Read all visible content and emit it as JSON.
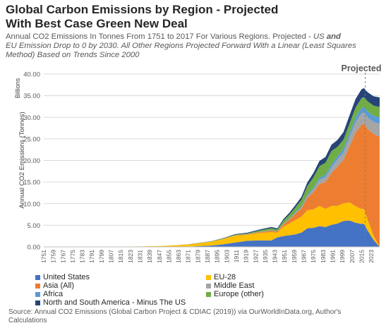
{
  "title_line1": "Global Carbon Emissions by Region - Projected",
  "title_line2": "With Best Case Green New Deal",
  "subtitle_a": "Annual CO2 Emissions In Tonnes From 1751 to 2017 For Various Regions. Projected - ",
  "subtitle_b": "US",
  "subtitle_c": " and",
  "subtitle_d": "EU Emission Drop to 0 by 2030.  All Other Regions Projected Forward With a Linear (Least Squares Method) Based on Trends Since 2000",
  "source": "Source: Annual CO2 Emissions (Global Carbon Project & CDIAC (2019)) via OurWorldInData.org, Author's Calculations",
  "chart_data": {
    "type": "area",
    "stacked": true,
    "title": "Global Carbon Emissions by Region - Projected",
    "ylabel": "Annual CO2 Emissions (Tonnes)",
    "yunit": "Billions",
    "annotation": "Projected",
    "projection_start": 2018,
    "ylim": [
      0,
      40
    ],
    "yticks": [
      "0.00",
      "5.00",
      "10.00",
      "15.00",
      "20.00",
      "25.00",
      "30.00",
      "35.00",
      "40.00"
    ],
    "xticks": [
      "1751",
      "1759",
      "1767",
      "1775",
      "1783",
      "1791",
      "1799",
      "1807",
      "1815",
      "1823",
      "1831",
      "1839",
      "1847",
      "1855",
      "1863",
      "1871",
      "1879",
      "1887",
      "1895",
      "1903",
      "1911",
      "1919",
      "1927",
      "1935",
      "1943",
      "1951",
      "1959",
      "1967",
      "1975",
      "1983",
      "1991",
      "1999",
      "2007",
      "2015",
      "2023"
    ],
    "xlim": [
      1751,
      2030
    ],
    "grid": "horizontal",
    "legend_position": "bottom",
    "x": [
      1751,
      1800,
      1830,
      1850,
      1870,
      1890,
      1900,
      1910,
      1920,
      1930,
      1940,
      1945,
      1950,
      1955,
      1960,
      1965,
      1970,
      1975,
      1980,
      1985,
      1990,
      1995,
      2000,
      2005,
      2010,
      2015,
      2017,
      2020,
      2025,
      2030
    ],
    "series": [
      {
        "name": "United States",
        "color": "#4472C4",
        "values": [
          0,
          0.001,
          0.003,
          0.02,
          0.07,
          0.3,
          0.6,
          1.0,
          1.4,
          1.5,
          1.5,
          2.2,
          2.5,
          2.7,
          2.9,
          3.3,
          4.3,
          4.4,
          4.8,
          4.6,
          5.1,
          5.4,
          6.0,
          6.1,
          5.6,
          5.3,
          5.3,
          3.8,
          1.6,
          0
        ]
      },
      {
        "name": "EU-28",
        "color": "#FFC000",
        "values": [
          0.01,
          0.03,
          0.1,
          0.2,
          0.45,
          0.9,
          1.2,
          1.6,
          1.4,
          1.7,
          1.9,
          1.1,
          2.2,
          2.7,
          3.3,
          3.7,
          4.2,
          4.3,
          4.7,
          4.2,
          4.4,
          4.1,
          4.1,
          4.2,
          3.8,
          3.5,
          3.5,
          2.5,
          1.0,
          0
        ]
      },
      {
        "name": "Asia (All)",
        "color": "#ED7D31",
        "values": [
          0,
          0,
          0,
          0,
          0,
          0.01,
          0.03,
          0.07,
          0.12,
          0.2,
          0.35,
          0.25,
          0.5,
          0.9,
          1.5,
          1.9,
          2.9,
          4.0,
          5.1,
          6.2,
          7.6,
          9.1,
          10.0,
          13.0,
          17.0,
          19.5,
          19.7,
          21.0,
          23.5,
          25.5
        ]
      },
      {
        "name": "Middle East",
        "color": "#A5A5A5",
        "values": [
          0,
          0,
          0,
          0,
          0,
          0,
          0,
          0,
          0.01,
          0.02,
          0.03,
          0.03,
          0.06,
          0.1,
          0.15,
          0.25,
          0.4,
          0.6,
          0.9,
          1.1,
          1.3,
          1.6,
          1.8,
          2.1,
          2.4,
          2.6,
          2.6,
          2.7,
          2.8,
          3.0
        ]
      },
      {
        "name": "Africa",
        "color": "#5B9BD5",
        "values": [
          0,
          0,
          0,
          0,
          0,
          0,
          0.01,
          0.02,
          0.03,
          0.05,
          0.06,
          0.06,
          0.1,
          0.14,
          0.17,
          0.22,
          0.3,
          0.4,
          0.5,
          0.6,
          0.7,
          0.75,
          0.85,
          0.95,
          1.15,
          1.25,
          1.3,
          1.35,
          1.4,
          1.5
        ]
      },
      {
        "name": "Europe (other)",
        "color": "#70AD47",
        "values": [
          0,
          0,
          0,
          0,
          0.01,
          0.05,
          0.1,
          0.15,
          0.15,
          0.3,
          0.5,
          0.35,
          0.7,
          0.9,
          1.1,
          1.5,
          2.0,
          2.4,
          2.7,
          2.8,
          3.1,
          2.2,
          2.1,
          2.2,
          2.3,
          2.3,
          2.3,
          2.35,
          2.4,
          2.4
        ]
      },
      {
        "name": "North and South America - Minus The US",
        "color": "#264478",
        "values": [
          0,
          0,
          0,
          0.01,
          0.02,
          0.05,
          0.08,
          0.12,
          0.18,
          0.22,
          0.27,
          0.3,
          0.35,
          0.45,
          0.55,
          0.7,
          0.85,
          1.0,
          1.2,
          1.3,
          1.45,
          1.6,
          1.75,
          1.9,
          2.0,
          2.05,
          2.05,
          2.1,
          2.15,
          2.2
        ]
      }
    ]
  }
}
